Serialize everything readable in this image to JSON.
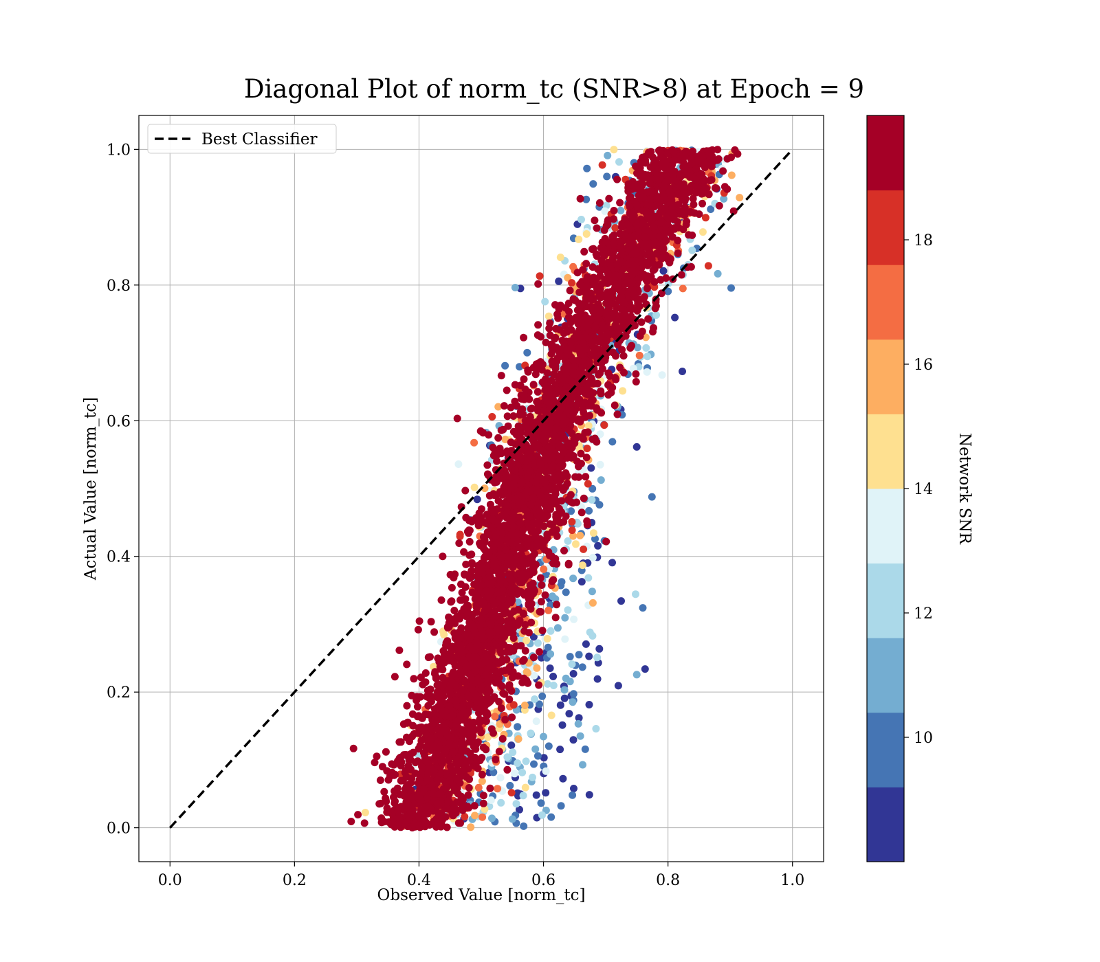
{
  "chart_data": {
    "type": "scatter",
    "title": "Diagonal Plot of norm_tc (SNR>8) at Epoch = 9",
    "xlabel": "Observed Value [norm_tc]",
    "ylabel": "Actual Value [norm_tc]",
    "xlim": [
      -0.05,
      1.05
    ],
    "ylim": [
      -0.05,
      1.05
    ],
    "xticks": [
      "0.0",
      "0.2",
      "0.4",
      "0.6",
      "0.8",
      "1.0"
    ],
    "yticks": [
      "0.0",
      "0.2",
      "0.4",
      "0.6",
      "0.8",
      "1.0"
    ],
    "grid": true,
    "legend": {
      "position": "top-left",
      "entries": [
        {
          "label": "Best Classifier",
          "style": "dashed",
          "color": "#000000"
        }
      ]
    },
    "reference_line": {
      "name": "Best Classifier",
      "x": [
        0.0,
        1.0
      ],
      "y": [
        0.0,
        1.0
      ]
    },
    "colorbar": {
      "label": "Network SNR",
      "range": [
        8,
        20
      ],
      "ticks": [
        "10",
        "12",
        "14",
        "16",
        "18"
      ],
      "colors": [
        "#313695",
        "#4575b4",
        "#74add1",
        "#abd9e9",
        "#e0f3f8",
        "#fee090",
        "#fdae61",
        "#f46d43",
        "#d73027",
        "#a50026"
      ]
    },
    "band_trend": {
      "description_points_y": [
        0.0,
        0.2,
        0.4,
        0.6,
        0.8,
        1.0
      ],
      "high_snr_center_x": [
        0.39,
        0.47,
        0.54,
        0.61,
        0.72,
        0.83
      ],
      "low_snr_center_x": [
        0.62,
        0.64,
        0.66,
        0.65,
        0.72,
        0.81
      ]
    }
  }
}
